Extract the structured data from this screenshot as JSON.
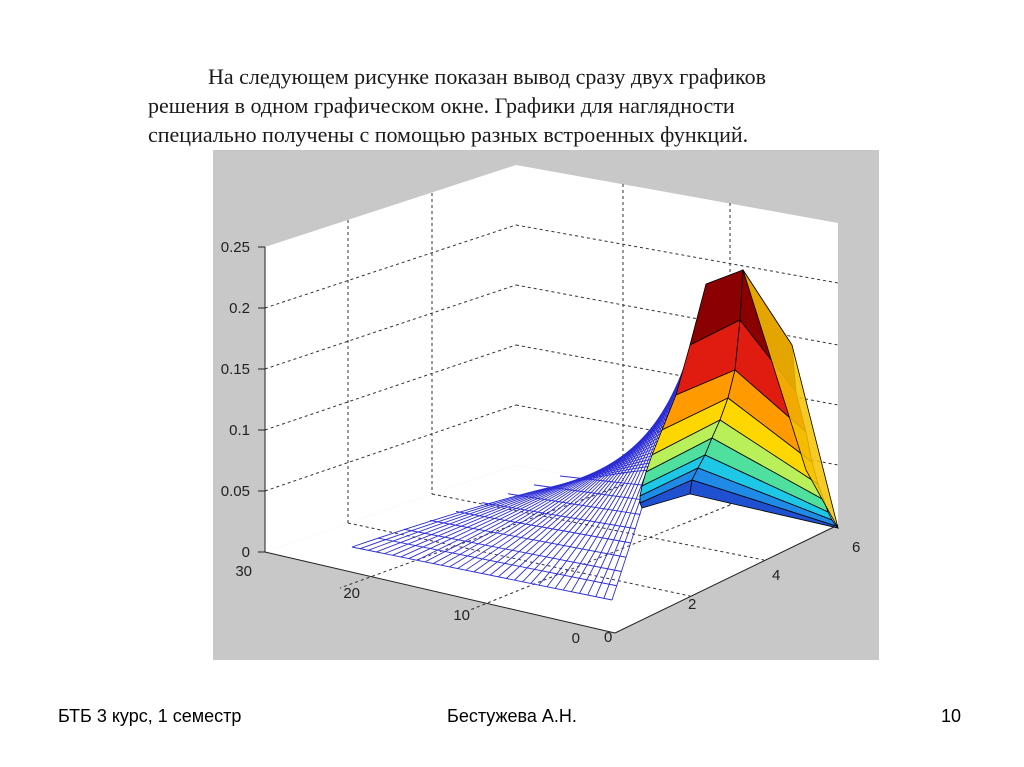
{
  "slide": {
    "paragraph_lines": [
      "На следующем рисунке показан вывод сразу двух графиков",
      "решения в одном графическом окне. Графики для наглядности",
      "специально получены с помощью разных встроенных функций."
    ],
    "footer": {
      "left": "БТБ  3 курс, 1 семестр",
      "center": "Бестужева А.Н.",
      "page_number": "10"
    }
  },
  "figure": {
    "background_color": "#c8c8c8",
    "z_ticks": [
      "0",
      "0.05",
      "0.1",
      "0.15",
      "0.2",
      "0.25"
    ],
    "y_ticks": [
      "30",
      "20",
      "10",
      "0"
    ],
    "x_ticks": [
      "0",
      "2",
      "4",
      "6"
    ],
    "mesh_color": "#2c2cd6",
    "colormap": "jet"
  }
}
